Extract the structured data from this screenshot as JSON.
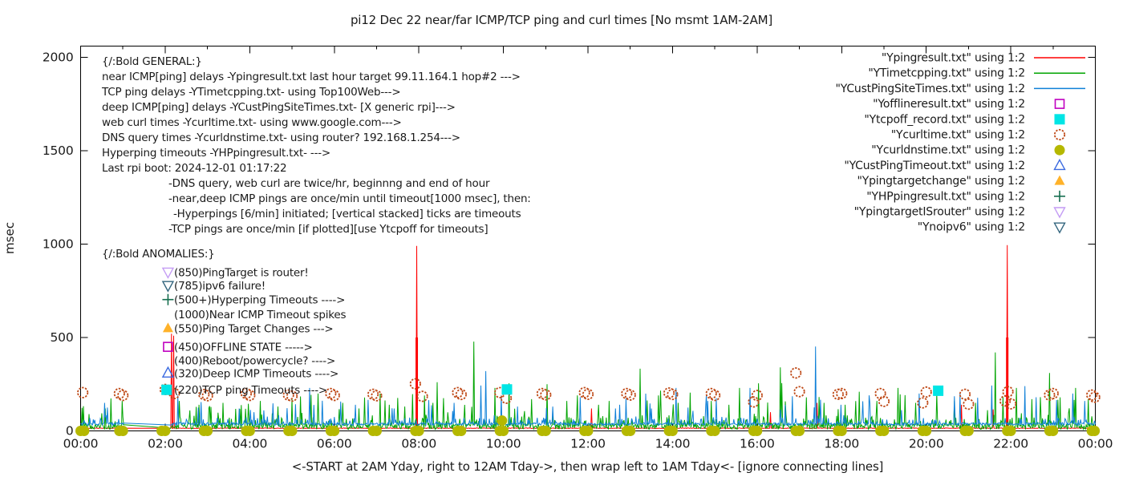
{
  "title": "pi12 Dec 22  near/far ICMP/TCP ping and curl times [No msmt 1AM-2AM]",
  "xlabel": "<-START at 2AM Yday, right to 12AM Tday->, then wrap left to 1AM Tday<- [ignore connecting lines]",
  "ylabel": "msec",
  "colors": {
    "near_icmp": "#ff0000",
    "tcp_ping": "#00a400",
    "deep_icmp": "#0f80d8",
    "offline": "#c000c0",
    "tcp_off": "#00e5e5",
    "curl": "#bf4a18",
    "dns": "#b5b800",
    "deep_timeout": "#3c6be0",
    "target_change": "#ffb229",
    "hyperping": "#166e4f",
    "target_is_router": "#c49cf4",
    "noipv6": "#33657e",
    "axis": "#000000",
    "text": "#1a1a1a"
  },
  "general_block": {
    "lines": [
      {
        "text": "{/:Bold GENERAL:}",
        "indent": 0
      },
      {
        "text": "near ICMP[ping] delays -Ypingresult.txt last hour target 99.11.164.1 hop#2 --->",
        "indent": 0
      },
      {
        "text": "TCP ping delays -YTimetcpping.txt- using Top100Web--->",
        "indent": 0
      },
      {
        "text": "deep ICMP[ping] delays -YCustPingSiteTimes.txt- [X generic rpi]--->",
        "indent": 0
      },
      {
        "text": "web curl times -Ycurltime.txt- using www.google.com--->",
        "indent": 0
      },
      {
        "text": "DNS query times -Ycurldnstime.txt- using router? 192.168.1.254--->",
        "indent": 0
      },
      {
        "text": "Hyperping timeouts -YHPpingresult.txt- --->",
        "indent": 0
      },
      {
        "text": "Last rpi boot: 2024-12-01 01:17:22",
        "indent": 0
      },
      {
        "text": "-DNS query, web curl are twice/hr, beginnng and end of hour",
        "indent": 1
      },
      {
        "text": "-near,deep ICMP pings are once/min until timeout[1000 msec], then:",
        "indent": 1
      },
      {
        "text": "-Hyperpings [6/min] initiated; [vertical stacked] ticks are timeouts",
        "indent": 2
      },
      {
        "text": "-TCP pings are once/min [if plotted][use Ytcpoff for timeouts]",
        "indent": 1
      }
    ]
  },
  "anomalies_block": {
    "header": "{/:Bold ANOMALIES:}",
    "rows": [
      {
        "y_msec": 850,
        "label": "(850)PingTarget is router!"
      },
      {
        "y_msec": 778,
        "label": "(785)ipv6 failure!"
      },
      {
        "y_msec": 703,
        "label": "(500+)Hyperping Timeouts ---->"
      },
      {
        "y_msec": 625,
        "label": "(1000)Near ICMP Timeout spikes"
      },
      {
        "y_msec": 550,
        "label": "(550)Ping Target Changes --->"
      },
      {
        "y_msec": 450,
        "label": "(450)OFFLINE STATE ----->"
      },
      {
        "y_msec": 378,
        "label": "(400)Reboot/powercycle? ---->"
      },
      {
        "y_msec": 310,
        "label": "(320)Deep ICMP Timeouts ---->"
      },
      {
        "y_msec": 220,
        "label": "(220)TCP ping Timeouts ---->"
      }
    ]
  },
  "legend": [
    {
      "label": "\"Ypingresult.txt\" using 1:2",
      "key": "line",
      "color_key": "near_icmp"
    },
    {
      "label": "\"YTimetcpping.txt\" using 1:2",
      "key": "line",
      "color_key": "tcp_ping"
    },
    {
      "label": "\"YCustPingSiteTimes.txt\" using 1:2",
      "key": "line",
      "color_key": "deep_icmp"
    },
    {
      "label": "\"Yofflineresult.txt\" using 1:2",
      "key": "square-open",
      "color_key": "offline"
    },
    {
      "label": "\"Ytcpoff_record.txt\" using 1:2",
      "key": "square-filled",
      "color_key": "tcp_off"
    },
    {
      "label": "\"Ycurltime.txt\" using 1:2",
      "key": "circle-open",
      "color_key": "curl"
    },
    {
      "label": "\"Ycurldnstime.txt\" using 1:2",
      "key": "circle-filled",
      "color_key": "dns"
    },
    {
      "label": "\"YCustPingTimeout.txt\" using 1:2",
      "key": "triangle-up-open",
      "color_key": "deep_timeout"
    },
    {
      "label": "\"Ypingtargetchange\" using 1:2",
      "key": "triangle-up-filled",
      "color_key": "target_change"
    },
    {
      "label": "\"YHPpingresult.txt\" using 1:2",
      "key": "plus",
      "color_key": "hyperping"
    },
    {
      "label": "\"YpingtargetISrouter\" using 1:2",
      "key": "triangle-down-open",
      "color_key": "target_is_router"
    },
    {
      "label": "\"Ynoipv6\" using 1:2",
      "key": "triangle-down-open",
      "color_key": "noipv6"
    }
  ],
  "chart_data": {
    "type": "line+scatter",
    "x_axis": {
      "ticks": [
        "00:00",
        "02:00",
        "04:00",
        "06:00",
        "08:00",
        "10:00",
        "12:00",
        "14:00",
        "16:00",
        "18:00",
        "20:00",
        "22:00",
        "00:00"
      ],
      "minor_every_min": 60,
      "range_min": [
        0,
        1440
      ]
    },
    "y_axis": {
      "ticks": [
        0,
        500,
        1000,
        1500,
        2000
      ],
      "range": [
        0,
        2060
      ]
    },
    "no_measurement_gap": [
      "01:01",
      "02:08"
    ],
    "series": [
      {
        "name": "Ypingresult.txt",
        "desc": "near ICMP ping delays",
        "color_key": "near_icmp",
        "baseline": 13,
        "noise": 3,
        "spikes": [
          [
            "01:00",
            14
          ],
          [
            "02:09",
            520
          ],
          [
            "02:12",
            510
          ],
          [
            "07:57",
            990
          ],
          [
            "12:05",
            120
          ],
          [
            "16:19",
            100
          ],
          [
            "17:25",
            150
          ],
          [
            "20:50",
            140
          ],
          [
            "21:35",
            115
          ],
          [
            "21:55",
            995
          ]
        ],
        "timeout_bars": [
          [
            "07:57",
            500
          ],
          [
            "21:55",
            500
          ]
        ]
      },
      {
        "name": "YTimetcpping.txt",
        "desc": "TCP ping delays",
        "color_key": "tcp_ping",
        "baseline": 8,
        "noise": 30,
        "spikes": [
          [
            "00:12",
            90
          ],
          [
            "00:35",
            120
          ],
          [
            "01:00",
            75
          ],
          [
            "02:20",
            160
          ],
          [
            "02:35",
            110
          ],
          [
            "02:48",
            140
          ],
          [
            "03:05",
            128
          ],
          [
            "03:22",
            150
          ],
          [
            "03:40",
            118
          ],
          [
            "03:58",
            145
          ],
          [
            "04:15",
            160
          ],
          [
            "04:40",
            130
          ],
          [
            "05:00",
            170
          ],
          [
            "05:37",
            200
          ],
          [
            "06:12",
            150
          ],
          [
            "06:35",
            120
          ],
          [
            "07:05",
            200
          ],
          [
            "07:18",
            140
          ],
          [
            "07:40",
            130
          ],
          [
            "08:20",
            150
          ],
          [
            "08:35",
            175
          ],
          [
            "09:18",
            478
          ],
          [
            "09:48",
            230
          ],
          [
            "10:08",
            255
          ],
          [
            "10:40",
            170
          ],
          [
            "11:02",
            250
          ],
          [
            "11:30",
            160
          ],
          [
            "11:45",
            190
          ],
          [
            "12:15",
            140
          ],
          [
            "12:30",
            160
          ],
          [
            "13:14",
            333
          ],
          [
            "13:40",
            190
          ],
          [
            "14:08",
            150
          ],
          [
            "14:25",
            205
          ],
          [
            "14:55",
            160
          ],
          [
            "15:20",
            140
          ],
          [
            "15:35",
            230
          ],
          [
            "16:02",
            255
          ],
          [
            "16:33",
            340
          ],
          [
            "17:10",
            180
          ],
          [
            "17:35",
            150
          ],
          [
            "18:05",
            140
          ],
          [
            "18:25",
            210
          ],
          [
            "18:50",
            160
          ],
          [
            "19:20",
            230
          ],
          [
            "19:45",
            150
          ],
          [
            "20:15",
            200
          ],
          [
            "20:40",
            160
          ],
          [
            "21:10",
            150
          ],
          [
            "21:38",
            420
          ],
          [
            "22:08",
            230
          ],
          [
            "22:30",
            170
          ],
          [
            "22:55",
            310
          ],
          [
            "23:10",
            180
          ],
          [
            "23:32",
            230
          ],
          [
            "23:50",
            170
          ]
        ],
        "timeout_bars": []
      },
      {
        "name": "YCustPingSiteTimes.txt",
        "desc": "deep ICMP ping delays",
        "color_key": "deep_icmp",
        "baseline": 30,
        "noise": 14,
        "spikes": [
          [
            "00:34",
            150
          ],
          [
            "00:38",
            125
          ],
          [
            "01:00",
            35
          ],
          [
            "02:18",
            190
          ],
          [
            "03:45",
            120
          ],
          [
            "04:20",
            110
          ],
          [
            "05:25",
            230
          ],
          [
            "06:30",
            140
          ],
          [
            "07:25",
            120
          ],
          [
            "08:50",
            150
          ],
          [
            "09:28",
            243
          ],
          [
            "09:35",
            320
          ],
          [
            "10:20",
            130
          ],
          [
            "11:10",
            130
          ],
          [
            "12:45",
            140
          ],
          [
            "13:30",
            120
          ],
          [
            "14:05",
            230
          ],
          [
            "14:50",
            160
          ],
          [
            "15:50",
            230
          ],
          [
            "16:40",
            140
          ],
          [
            "17:23",
            452
          ],
          [
            "18:40",
            150
          ],
          [
            "19:50",
            200
          ],
          [
            "20:48",
            200
          ],
          [
            "21:33",
            243
          ],
          [
            "22:20",
            240
          ],
          [
            "23:28",
            200
          ],
          [
            "23:45",
            160
          ]
        ],
        "timeout_bars": []
      }
    ],
    "markers": [
      {
        "name": "Ycurltime.txt",
        "shape": "circle-open",
        "color_key": "curl",
        "points": [
          [
            "00:03",
            205
          ],
          [
            "00:55",
            200
          ],
          [
            "01:00",
            190
          ],
          [
            "02:00",
            222
          ],
          [
            "02:13",
            200
          ],
          [
            "02:55",
            195
          ],
          [
            "03:00",
            188
          ],
          [
            "03:55",
            200
          ],
          [
            "04:00",
            190
          ],
          [
            "04:55",
            192
          ],
          [
            "05:00",
            186
          ],
          [
            "05:55",
            200
          ],
          [
            "06:00",
            190
          ],
          [
            "06:55",
            196
          ],
          [
            "07:00",
            188
          ],
          [
            "07:55",
            252
          ],
          [
            "08:05",
            185
          ],
          [
            "08:55",
            205
          ],
          [
            "09:00",
            195
          ],
          [
            "09:55",
            205
          ],
          [
            "10:04",
            175
          ],
          [
            "10:55",
            200
          ],
          [
            "11:00",
            193
          ],
          [
            "11:55",
            205
          ],
          [
            "12:00",
            196
          ],
          [
            "12:55",
            200
          ],
          [
            "13:00",
            192
          ],
          [
            "13:55",
            203
          ],
          [
            "14:00",
            195
          ],
          [
            "14:55",
            200
          ],
          [
            "15:00",
            190
          ],
          [
            "15:55",
            155
          ],
          [
            "16:00",
            190
          ],
          [
            "16:55",
            310
          ],
          [
            "17:00",
            210
          ],
          [
            "17:55",
            196
          ],
          [
            "18:00",
            200
          ],
          [
            "18:55",
            200
          ],
          [
            "19:00",
            158
          ],
          [
            "19:55",
            150
          ],
          [
            "20:00",
            208
          ],
          [
            "20:55",
            196
          ],
          [
            "21:00",
            143
          ],
          [
            "21:52",
            160
          ],
          [
            "21:56",
            210
          ],
          [
            "22:00",
            145
          ],
          [
            "22:55",
            192
          ],
          [
            "23:00",
            200
          ],
          [
            "23:55",
            192
          ],
          [
            "23:59",
            180
          ]
        ]
      },
      {
        "name": "Ycurldnstime.txt",
        "shape": "circle-filled",
        "color_key": "dns",
        "points": [
          [
            "00:00",
            0
          ],
          [
            "00:05",
            0
          ],
          [
            "00:55",
            0
          ],
          [
            "01:00",
            0
          ],
          [
            "01:55",
            0
          ],
          [
            "02:00",
            0
          ],
          [
            "02:55",
            0
          ],
          [
            "03:00",
            0
          ],
          [
            "03:55",
            0
          ],
          [
            "04:00",
            0
          ],
          [
            "04:55",
            0
          ],
          [
            "05:00",
            0
          ],
          [
            "05:55",
            0
          ],
          [
            "06:00",
            0
          ],
          [
            "06:55",
            0
          ],
          [
            "07:00",
            0
          ],
          [
            "07:55",
            0
          ],
          [
            "08:00",
            0
          ],
          [
            "08:55",
            0
          ],
          [
            "09:00",
            0
          ],
          [
            "09:55",
            0
          ],
          [
            "09:58",
            55
          ],
          [
            "10:00",
            0
          ],
          [
            "10:55",
            0
          ],
          [
            "11:00",
            0
          ],
          [
            "11:55",
            0
          ],
          [
            "12:00",
            0
          ],
          [
            "12:55",
            0
          ],
          [
            "13:00",
            0
          ],
          [
            "13:55",
            0
          ],
          [
            "14:00",
            0
          ],
          [
            "14:55",
            0
          ],
          [
            "15:00",
            0
          ],
          [
            "15:55",
            0
          ],
          [
            "16:00",
            0
          ],
          [
            "16:55",
            0
          ],
          [
            "17:00",
            0
          ],
          [
            "17:55",
            0
          ],
          [
            "18:00",
            0
          ],
          [
            "18:55",
            0
          ],
          [
            "19:00",
            0
          ],
          [
            "19:55",
            0
          ],
          [
            "20:00",
            0
          ],
          [
            "20:55",
            0
          ],
          [
            "21:00",
            0
          ],
          [
            "21:55",
            0
          ],
          [
            "22:00",
            0
          ],
          [
            "22:55",
            0
          ],
          [
            "23:00",
            0
          ],
          [
            "23:55",
            0
          ],
          [
            "23:59",
            0
          ]
        ]
      },
      {
        "name": "Yofflineresult.txt",
        "shape": "square-open",
        "color_key": "offline",
        "points": [
          [
            "02:04",
            450
          ]
        ]
      },
      {
        "name": "Ytcpoff_record.txt",
        "shape": "square-filled",
        "color_key": "tcp_off",
        "points": [
          [
            "02:02",
            220
          ],
          [
            "10:05",
            222
          ],
          [
            "20:17",
            215
          ]
        ]
      },
      {
        "name": "YCustPingTimeout.txt",
        "shape": "triangle-up-open",
        "color_key": "deep_timeout",
        "points": [
          [
            "02:04",
            310
          ]
        ]
      },
      {
        "name": "Ypingtargetchange",
        "shape": "triangle-up-filled",
        "color_key": "target_change",
        "points": [
          [
            "02:04",
            550
          ]
        ]
      },
      {
        "name": "YHPpingresult.txt",
        "shape": "plus",
        "color_key": "hyperping",
        "points": [
          [
            "02:04",
            703
          ]
        ]
      },
      {
        "name": "YpingtargetISrouter",
        "shape": "triangle-down-open",
        "color_key": "target_is_router",
        "points": [
          [
            "02:04",
            850
          ]
        ]
      },
      {
        "name": "Ynoipv6",
        "shape": "triangle-down-open",
        "color_key": "noipv6",
        "points": [
          [
            "02:04",
            778
          ]
        ]
      }
    ]
  }
}
